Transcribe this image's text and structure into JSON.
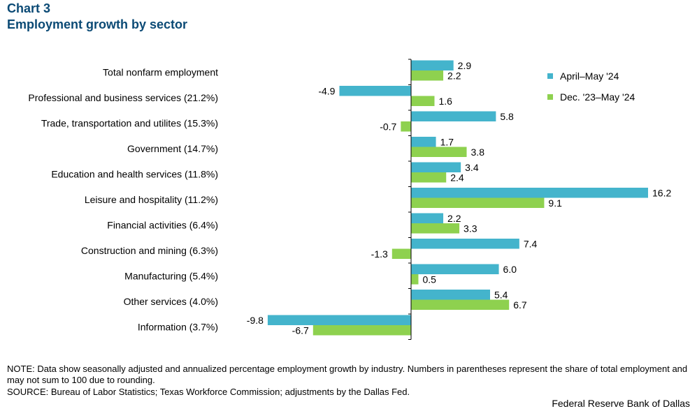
{
  "header": {
    "chart_number": "Chart 3",
    "title": "Employment growth by sector"
  },
  "colors": {
    "series1": "#44b4cc",
    "series2": "#8ed14f",
    "axis": "#000000",
    "title": "#0b4a75"
  },
  "chart_data": {
    "type": "bar",
    "orientation": "horizontal",
    "title": "Employment growth by sector",
    "categories": [
      "Total nonfarm employment",
      "Professional and business services (21.2%)",
      "Trade, transportation and utilites (15.3%)",
      "Government  (14.7%)",
      "Education and health services (11.8%)",
      "Leisure and hospitality (11.2%)",
      "Financial activities  (6.4%)",
      "Construction and mining (6.3%)",
      "Manufacturing  (5.4%)",
      "Other services  (4.0%)",
      "Information  (3.7%)"
    ],
    "series": [
      {
        "name": "April–May '24",
        "values": [
          2.9,
          -4.9,
          5.8,
          1.7,
          3.4,
          16.2,
          2.2,
          7.4,
          6.0,
          5.4,
          -9.8
        ]
      },
      {
        "name": "Dec. '23–May '24",
        "values": [
          2.2,
          1.6,
          -0.7,
          3.8,
          2.4,
          9.1,
          3.3,
          -1.3,
          0.5,
          6.7,
          -6.7
        ]
      }
    ],
    "xlim": [
      -10,
      17
    ],
    "legend_position": "top-right",
    "grid": false
  },
  "footer": {
    "note": "NOTE: Data show seasonally adjusted and annualized percentage employment growth by industry. Numbers in parentheses represent the share of total employment and may not sum to 100 due to rounding.",
    "source": "SOURCE: Bureau of Labor Statistics; Texas Workforce Commission; adjustments by the Dallas Fed.",
    "credit": "Federal Reserve Bank of Dallas"
  }
}
